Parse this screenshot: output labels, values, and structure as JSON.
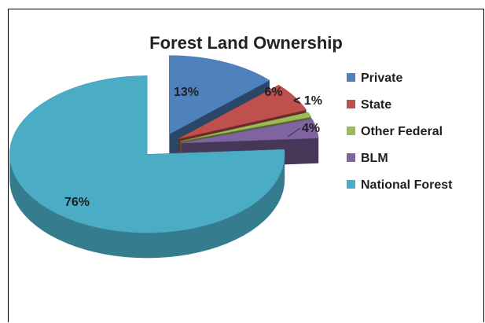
{
  "chart_data": {
    "type": "pie",
    "title": "Forest Land Ownership",
    "labels": [
      "Private",
      "State",
      "Other Federal",
      "BLM",
      "National Forest"
    ],
    "values": [
      13,
      6,
      1,
      4,
      76
    ],
    "data_labels": [
      "13%",
      "6%",
      "< 1%",
      "4%",
      "76%"
    ],
    "colors": [
      "#4f81bd",
      "#c0504d",
      "#9bbb59",
      "#8064a2",
      "#4bacc6"
    ],
    "style": "3d-exploded",
    "legend_position": "right"
  }
}
